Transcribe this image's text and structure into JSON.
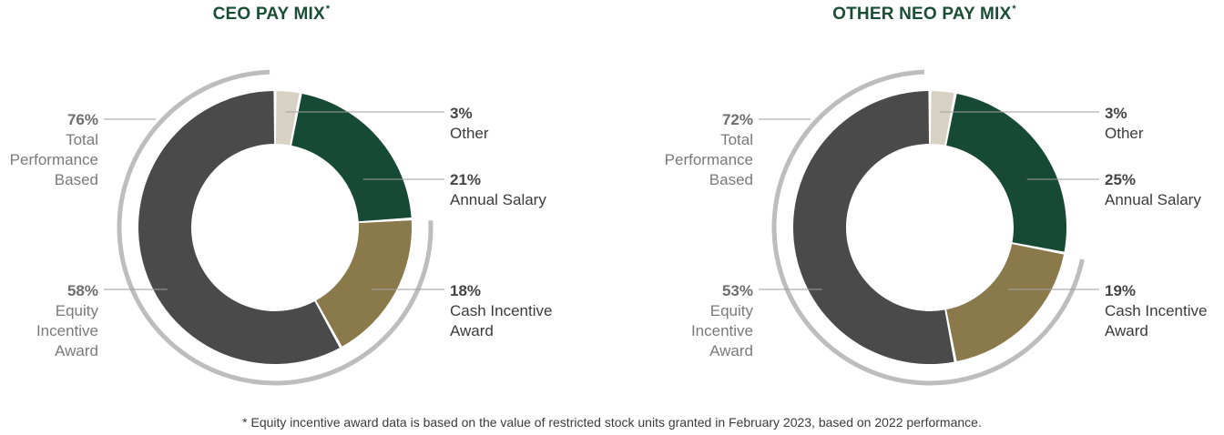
{
  "footnote": "* Equity incentive award data is based on the value of restricted stock units granted in February 2023, based on 2022 performance.",
  "colors": {
    "other": "#d8d2c4",
    "annual_salary": "#174a35",
    "cash_incentive": "#8a7a4b",
    "equity_incentive": "#4a4a4a",
    "outer_arc": "#bdbdbd",
    "title": "#1a4d35"
  },
  "chart_data": [
    {
      "type": "pie",
      "title": "CEO PAY MIX",
      "title_mark": "*",
      "categories": [
        "Other",
        "Annual Salary",
        "Cash Incentive Award",
        "Equity Incentive Award"
      ],
      "values": [
        3,
        21,
        18,
        58
      ],
      "labels": {
        "other": {
          "pct": "3%",
          "text": "Other"
        },
        "annual_salary": {
          "pct": "21%",
          "text": "Annual Salary"
        },
        "cash_incentive": {
          "pct": "18%",
          "text": "Cash Incentive Award"
        },
        "equity_incentive": {
          "pct": "58%",
          "text": "Equity Incentive Award"
        },
        "total_performance": {
          "pct": "76%",
          "text": "Total Performance Based"
        }
      },
      "total_performance_based": 76
    },
    {
      "type": "pie",
      "title": "OTHER NEO PAY MIX",
      "title_mark": "*",
      "categories": [
        "Other",
        "Annual Salary",
        "Cash Incentive Award",
        "Equity Incentive Award"
      ],
      "values": [
        3,
        25,
        19,
        53
      ],
      "labels": {
        "other": {
          "pct": "3%",
          "text": "Other"
        },
        "annual_salary": {
          "pct": "25%",
          "text": "Annual Salary"
        },
        "cash_incentive": {
          "pct": "19%",
          "text": "Cash Incentive Award"
        },
        "equity_incentive": {
          "pct": "53%",
          "text": "Equity Incentive Award"
        },
        "total_performance": {
          "pct": "72%",
          "text": "Total Performance Based"
        }
      },
      "total_performance_based": 72
    }
  ]
}
